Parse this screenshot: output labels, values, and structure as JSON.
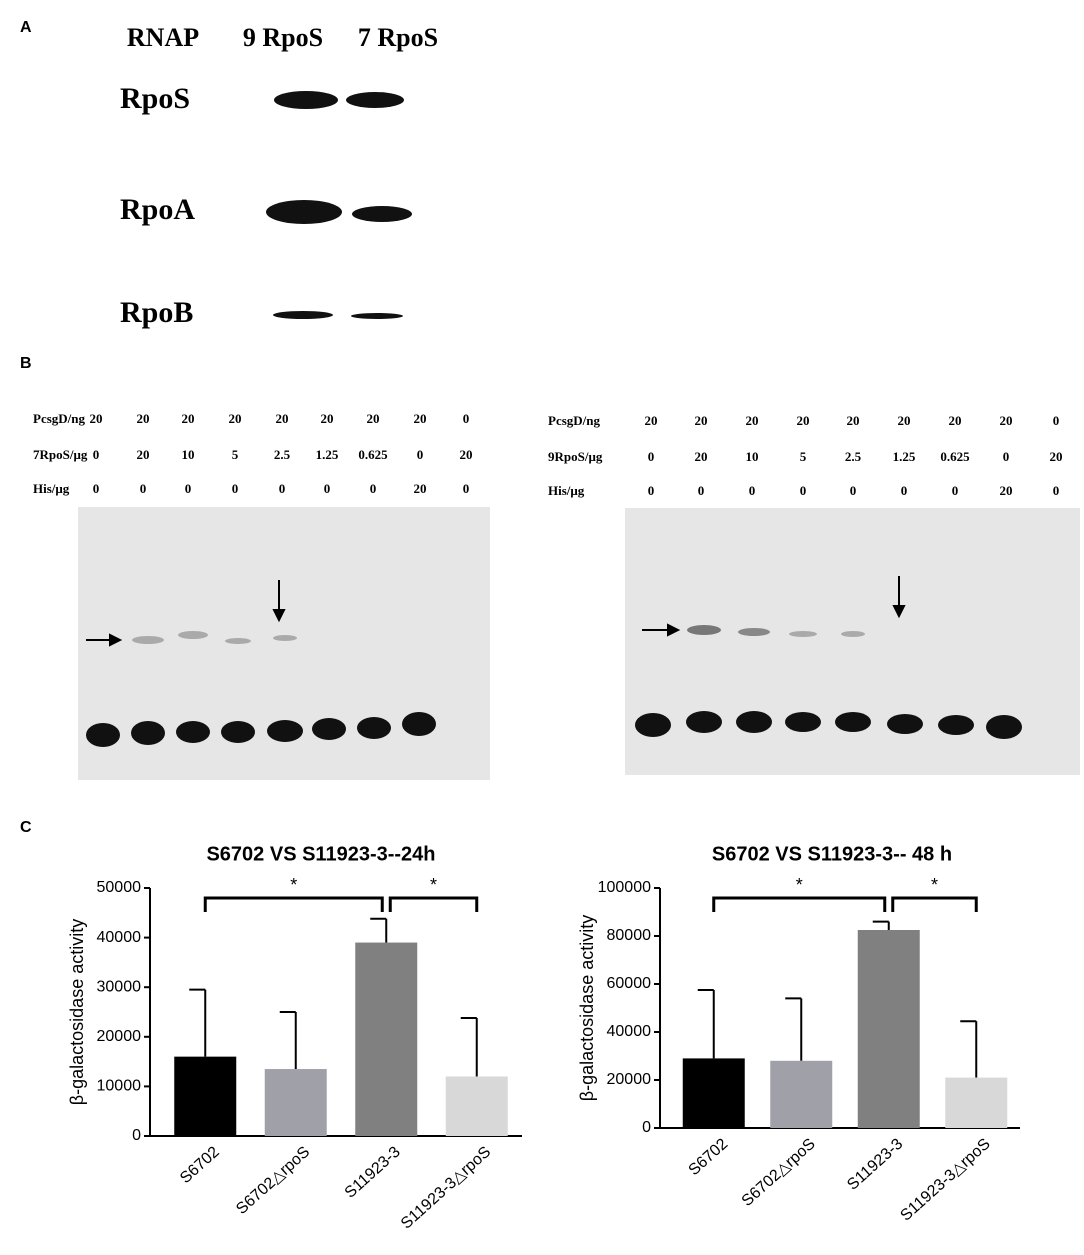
{
  "panel_labels": [
    "A",
    "B",
    "C"
  ],
  "panel_a": {
    "header": [
      "RNAP",
      "9 RpoS",
      "7 RpoS"
    ],
    "rows": [
      "RpoS",
      "RpoA",
      "RpoB"
    ]
  },
  "panel_b": [
    {
      "rows": [
        {
          "label": "PcsgD/ng",
          "values": [
            20,
            20,
            20,
            20,
            20,
            20,
            20,
            20,
            0
          ]
        },
        {
          "label": "7RpoS/μg",
          "values": [
            0,
            20,
            10,
            5,
            2.5,
            1.25,
            0.625,
            0,
            20
          ]
        },
        {
          "label": "His/μg",
          "values": [
            0,
            0,
            0,
            0,
            0,
            0,
            0,
            20,
            0
          ]
        }
      ]
    },
    {
      "rows": [
        {
          "label": "PcsgD/ng",
          "values": [
            20,
            20,
            20,
            20,
            20,
            20,
            20,
            20,
            0
          ]
        },
        {
          "label": "9RpoS/μg",
          "values": [
            0,
            20,
            10,
            5,
            2.5,
            1.25,
            0.625,
            0,
            20
          ]
        },
        {
          "label": "His/μg",
          "values": [
            0,
            0,
            0,
            0,
            0,
            0,
            0,
            20,
            0
          ]
        }
      ]
    }
  ],
  "chart_data": [
    {
      "type": "bar",
      "title": "S6702 VS S11923-3--24h",
      "y_label": "β-galactosidase activity",
      "categories": [
        "S6702",
        "S6702△rpoS",
        "S11923-3",
        "S11923-3△rpoS"
      ],
      "values": [
        16000,
        13500,
        39000,
        12000
      ],
      "errors": [
        13500,
        11500,
        4800,
        11800
      ],
      "colors": [
        "#000000",
        "#a0a0a8",
        "#808080",
        "#d8d8d8"
      ],
      "ylim": [
        0,
        50000
      ],
      "yticks": [
        0,
        10000,
        20000,
        30000,
        40000,
        50000
      ],
      "annotations": [
        "*",
        "*"
      ]
    },
    {
      "type": "bar",
      "title": "S6702 VS S11923-3-- 48 h",
      "y_label": "β-galactosidase activity",
      "categories": [
        "S6702",
        "S6702△rpoS",
        "S11923-3",
        "S11923-3△rpoS"
      ],
      "values": [
        29000,
        28000,
        82500,
        21000
      ],
      "errors": [
        28500,
        26000,
        3500,
        23500
      ],
      "colors": [
        "#000000",
        "#a0a0a8",
        "#808080",
        "#d8d8d8"
      ],
      "ylim": [
        0,
        100000
      ],
      "yticks": [
        0,
        20000,
        40000,
        60000,
        80000,
        100000
      ],
      "annotations": [
        "*",
        "*"
      ]
    }
  ]
}
